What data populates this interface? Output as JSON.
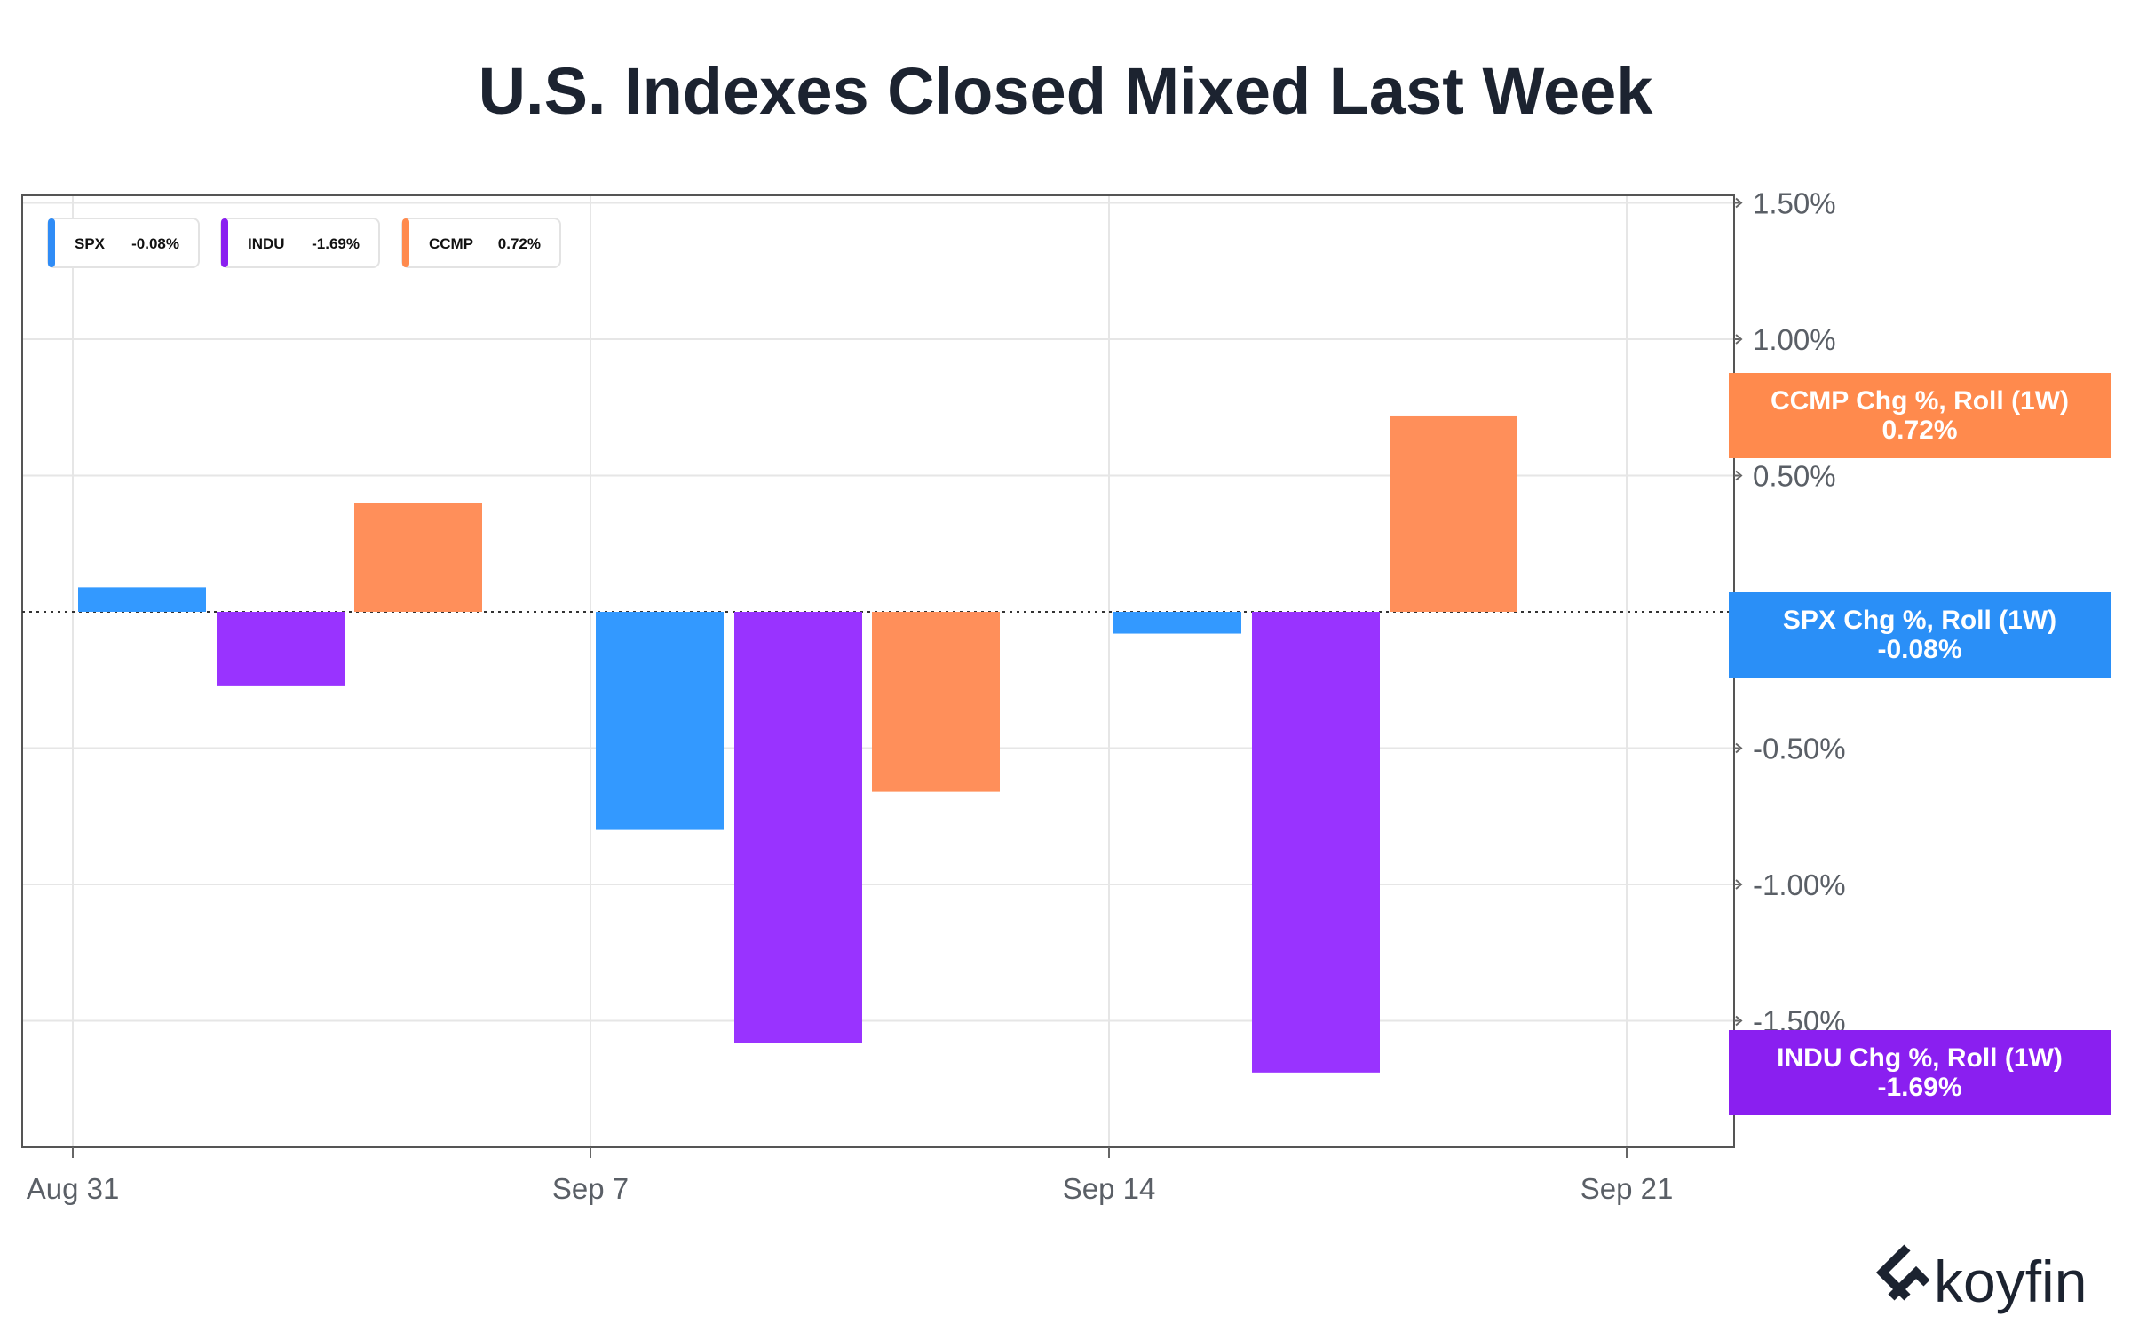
{
  "chart_data": {
    "type": "bar",
    "title": "U.S. Indexes Closed Mixed Last Week",
    "categories": [
      "Aug 31",
      "Sep 7",
      "Sep 14"
    ],
    "series": [
      {
        "name": "SPX",
        "values": [
          0.09,
          -0.8,
          -0.08
        ],
        "color": "#3399ff"
      },
      {
        "name": "INDU",
        "values": [
          -0.27,
          -1.58,
          -1.69
        ],
        "color": "#9933ff"
      },
      {
        "name": "CCMP",
        "values": [
          0.4,
          -0.66,
          0.72
        ],
        "color": "#ff8f5a"
      }
    ],
    "x_ticks": [
      "Aug 31",
      "Sep 7",
      "Sep 14",
      "Sep 21"
    ],
    "y_ticks": [
      {
        "value": 1.5,
        "label": "1.50%"
      },
      {
        "value": 1.0,
        "label": "1.00%"
      },
      {
        "value": 0.5,
        "label": "0.50%"
      },
      {
        "value": 0.0,
        "label": "0.00%"
      },
      {
        "value": -0.5,
        "label": "-0.50%"
      },
      {
        "value": -1.0,
        "label": "-1.00%"
      },
      {
        "value": -1.5,
        "label": "-1.50%"
      }
    ],
    "ylim": [
      -1.97,
      1.53
    ],
    "grid": true,
    "legend_position": "top-left",
    "legend": [
      {
        "name": "SPX",
        "value": "-0.08%",
        "color": "#2f8cf6"
      },
      {
        "name": "INDU",
        "value": "-1.69%",
        "color": "#8a1ff0"
      },
      {
        "name": "CCMP",
        "value": "0.72%",
        "color": "#ff8a4d"
      }
    ],
    "callouts": [
      {
        "series": "CCMP",
        "value": 0.72,
        "line1": "CCMP Chg %, Roll (1W)",
        "line2": "0.72%",
        "color": "#ff8a4d"
      },
      {
        "series": "SPX",
        "value": -0.08,
        "line1": "SPX Chg %, Roll (1W)",
        "line2": "-0.08%",
        "color": "#2a8ff7"
      },
      {
        "series": "INDU",
        "value": -1.69,
        "line1": "INDU Chg %, Roll (1W)",
        "line2": "-1.69%",
        "color": "#8a1ff0"
      }
    ]
  },
  "brand": {
    "name": "koyfin"
  }
}
